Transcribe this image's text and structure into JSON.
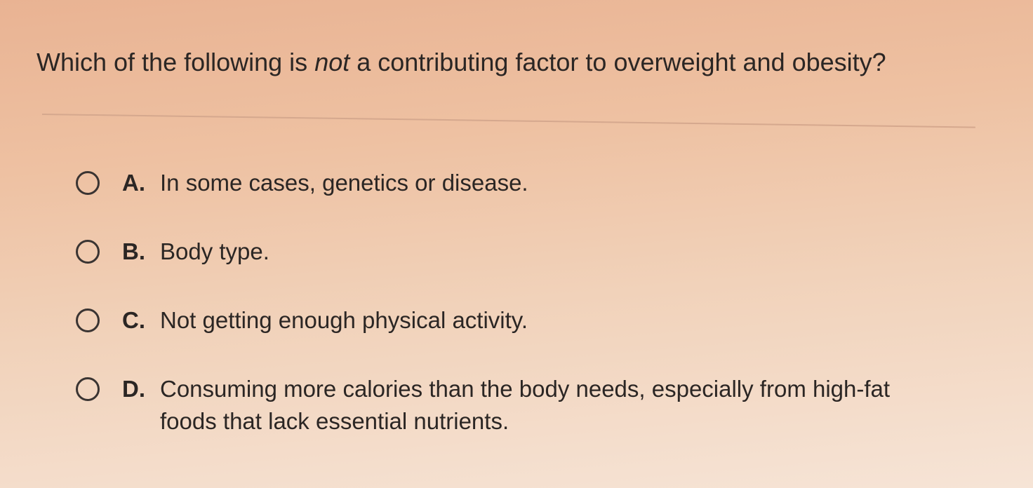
{
  "question": {
    "text_before": "Which of the following is ",
    "emphasis": "not",
    "text_after": " a contributing factor to overweight and obesity?"
  },
  "options": [
    {
      "letter": "A.",
      "text": "In some cases, genetics or disease."
    },
    {
      "letter": "B.",
      "text": "Body type."
    },
    {
      "letter": "C.",
      "text": "Not getting enough physical activity."
    },
    {
      "letter": "D.",
      "text": "Consuming more calories than the body needs, especially from high-fat foods that lack essential nutrients."
    }
  ]
}
